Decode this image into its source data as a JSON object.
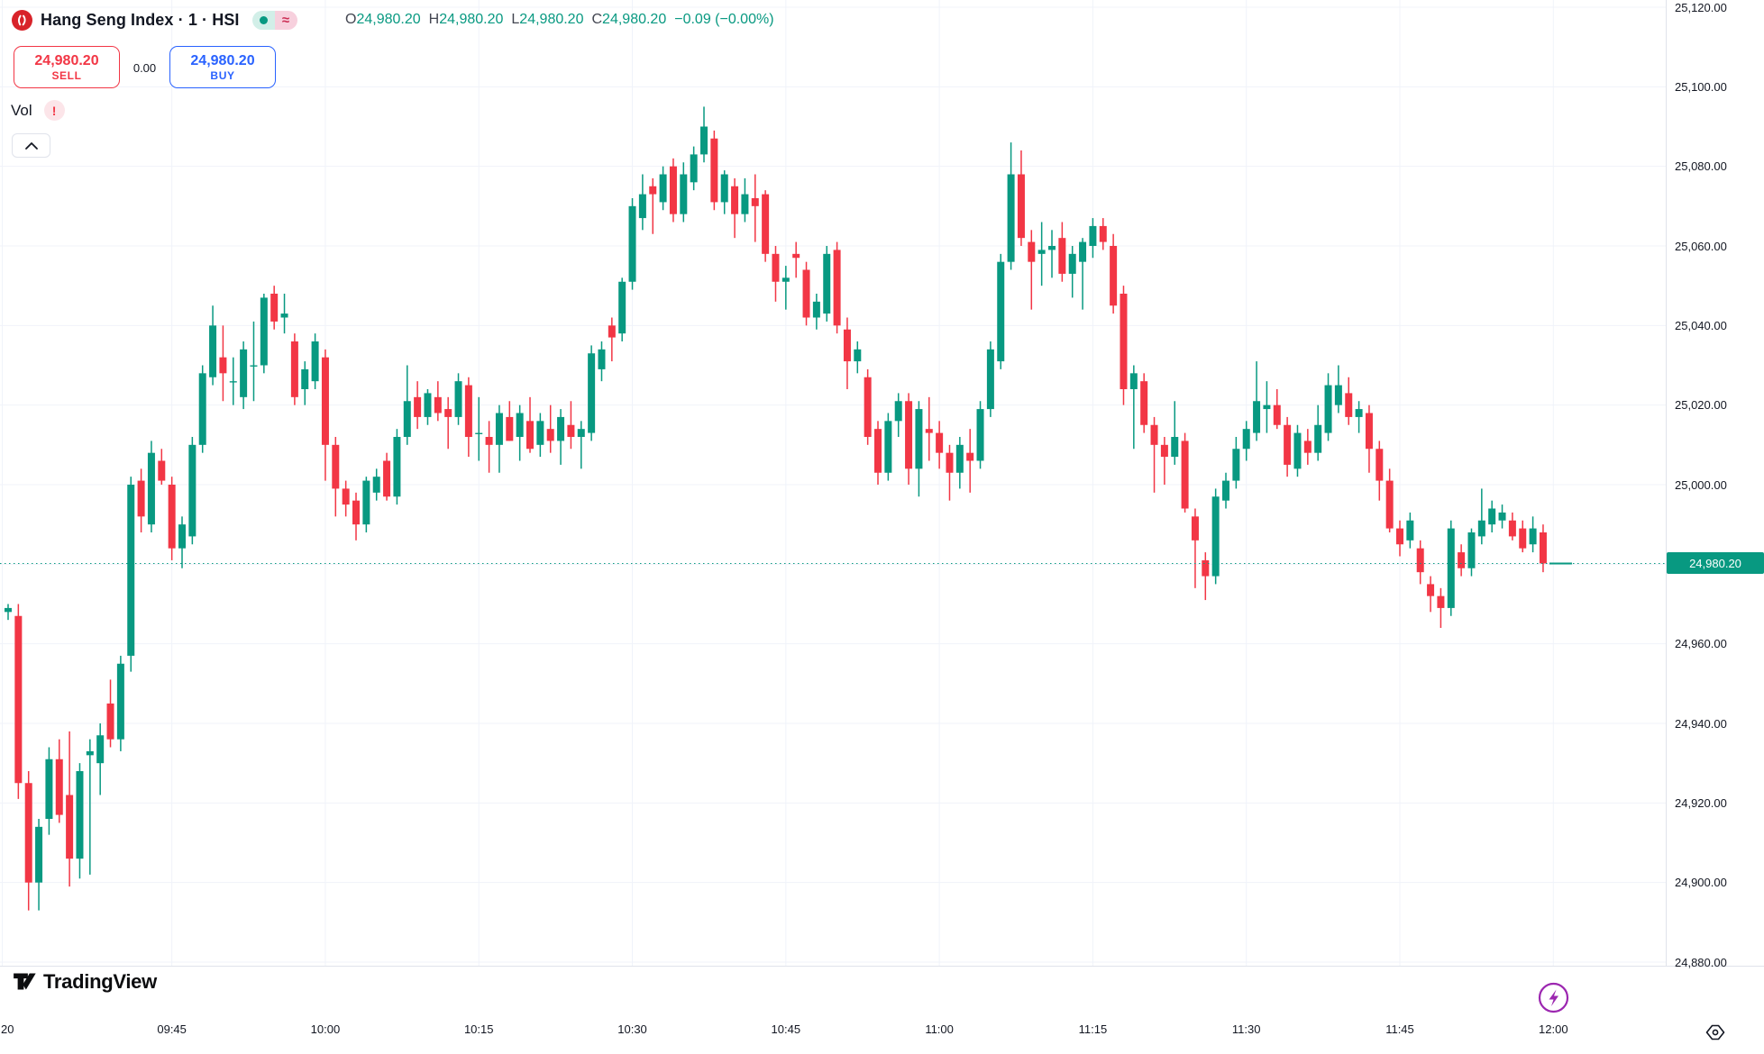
{
  "header": {
    "symbol_title": "Hang Seng Index · 1 · HSI",
    "logo_name": "hang-seng-logo",
    "status": {
      "market_open_dot": "",
      "delayed_glyph": "≈"
    },
    "ohlc": {
      "o_label": "O",
      "o": "24,980.20",
      "h_label": "H",
      "h": "24,980.20",
      "l_label": "L",
      "l": "24,980.20",
      "c_label": "C",
      "c": "24,980.20",
      "change": "−0.09 (−0.00%)"
    }
  },
  "trade_panel": {
    "sell_price": "24,980.20",
    "sell_label": "SELL",
    "spread": "0.00",
    "buy_price": "24,980.20",
    "buy_label": "BUY"
  },
  "legend": {
    "vol_label": "Vol",
    "warning_glyph": "!"
  },
  "price_axis": {
    "labels": [
      "25,120.00",
      "25,100.00",
      "25,080.00",
      "25,060.00",
      "25,040.00",
      "25,020.00",
      "25,000.00",
      "24,980.00",
      "24,960.00",
      "24,940.00",
      "24,920.00",
      "24,900.00",
      "24,880.00"
    ],
    "current_price_label": "24,980.20"
  },
  "time_axis": {
    "labels": [
      "09:45",
      "10:00",
      "10:15",
      "10:30",
      "10:45",
      "11:00",
      "11:15",
      "11:30",
      "11:45",
      "12:00"
    ],
    "partial_label": "20"
  },
  "footer": {
    "brand": "TradingView"
  },
  "colors": {
    "up": "#089981",
    "down": "#f23645",
    "grid": "#f0f3fa",
    "axis_border": "#e0e3eb",
    "sell": "#f23645",
    "buy": "#2962ff",
    "text": "#131722",
    "purple": "#9c27b0",
    "current_price_bg": "#089981"
  },
  "chart_data": {
    "type": "candlestick",
    "title": "Hang Seng Index 1-minute candles",
    "interval": "1m",
    "start_time": "09:29",
    "end_time": "11:59",
    "y_axis": {
      "min": 24880,
      "max": 25120,
      "step": 20
    },
    "legend_position": "top-left",
    "grid": true,
    "current_price": 24980.2,
    "candles_format": [
      "open",
      "high",
      "low",
      "close"
    ],
    "candles": [
      [
        24968,
        24970,
        24966,
        24969
      ],
      [
        24967,
        24970,
        24921,
        24925
      ],
      [
        24925,
        24928,
        24893,
        24900
      ],
      [
        24900,
        24916,
        24893,
        24914
      ],
      [
        24916,
        24934,
        24912,
        24931
      ],
      [
        24931,
        24936,
        24915,
        24917
      ],
      [
        24922,
        24938,
        24899,
        24906
      ],
      [
        24906,
        24930,
        24901,
        24928
      ],
      [
        24932,
        24936,
        24902,
        24933
      ],
      [
        24930,
        24940,
        24922,
        24937
      ],
      [
        24945,
        24951,
        24934,
        24936
      ],
      [
        24936,
        24957,
        24933,
        24955
      ],
      [
        24957,
        25002,
        24953,
        25000
      ],
      [
        25001,
        25004,
        24988,
        24992
      ],
      [
        24990,
        25011,
        24988,
        25008
      ],
      [
        25006,
        25009,
        25000,
        25001
      ],
      [
        25000,
        25002,
        24981,
        24984
      ],
      [
        24984,
        24992,
        24979,
        24990
      ],
      [
        24987,
        25012,
        24985,
        25010
      ],
      [
        25010,
        25030,
        25008,
        25028
      ],
      [
        25027,
        25045,
        25025,
        25040
      ],
      [
        25032,
        25040,
        25021,
        25028
      ],
      [
        25026,
        25032,
        25020,
        25026
      ],
      [
        25022,
        25036,
        25019,
        25034
      ],
      [
        25030,
        25041,
        25021,
        25030
      ],
      [
        25030,
        25048,
        25028,
        25047
      ],
      [
        25048,
        25050,
        25039,
        25041
      ],
      [
        25042,
        25048,
        25038,
        25043
      ],
      [
        25036,
        25038,
        25020,
        25022
      ],
      [
        25024,
        25031,
        25020,
        25029
      ],
      [
        25026,
        25038,
        25024,
        25036
      ],
      [
        25032,
        25034,
        25001,
        25010
      ],
      [
        25010,
        25012,
        24992,
        24999
      ],
      [
        24999,
        25001,
        24992,
        24995
      ],
      [
        24996,
        24998,
        24986,
        24990
      ],
      [
        24990,
        25002,
        24988,
        25001
      ],
      [
        24998,
        25004,
        24996,
        25002
      ],
      [
        25006,
        25008,
        24996,
        24997
      ],
      [
        24997,
        25014,
        24995,
        25012
      ],
      [
        25012,
        25030,
        25010,
        25021
      ],
      [
        25022,
        25026,
        25014,
        25017
      ],
      [
        25017,
        25024,
        25015,
        25023
      ],
      [
        25022,
        25026,
        25016,
        25018
      ],
      [
        25019,
        25022,
        25009,
        25017
      ],
      [
        25017,
        25028,
        25015,
        25026
      ],
      [
        25025,
        25027,
        25007,
        25012
      ],
      [
        25013,
        25022,
        25006,
        25013
      ],
      [
        25012,
        25016,
        25003,
        25010
      ],
      [
        25010,
        25020,
        25003,
        25018
      ],
      [
        25017,
        25021,
        25011,
        25011
      ],
      [
        25012,
        25020,
        25006,
        25018
      ],
      [
        25016,
        25022,
        25008,
        25009
      ],
      [
        25010,
        25018,
        25007,
        25016
      ],
      [
        25014,
        25020,
        25008,
        25011
      ],
      [
        25011,
        25019,
        25005,
        25017
      ],
      [
        25015,
        25021,
        25009,
        25012
      ],
      [
        25012,
        25016,
        25004,
        25014
      ],
      [
        25013,
        25035,
        25011,
        25033
      ],
      [
        25029,
        25036,
        25026,
        25034
      ],
      [
        25040,
        25042,
        25031,
        25037
      ],
      [
        25038,
        25052,
        25036,
        25051
      ],
      [
        25051,
        25072,
        25049,
        25070
      ],
      [
        25067,
        25078,
        25064,
        25073
      ],
      [
        25075,
        25077,
        25063,
        25073
      ],
      [
        25071,
        25080,
        25069,
        25078
      ],
      [
        25080,
        25082,
        25066,
        25068
      ],
      [
        25068,
        25081,
        25066,
        25078
      ],
      [
        25076,
        25085,
        25074,
        25083
      ],
      [
        25083,
        25095,
        25081,
        25090
      ],
      [
        25087,
        25089,
        25069,
        25071
      ],
      [
        25071,
        25079,
        25068,
        25078
      ],
      [
        25075,
        25077,
        25062,
        25068
      ],
      [
        25068,
        25077,
        25066,
        25073
      ],
      [
        25072,
        25078,
        25061,
        25070
      ],
      [
        25073,
        25074,
        25056,
        25058
      ],
      [
        25058,
        25060,
        25046,
        25051
      ],
      [
        25051,
        25055,
        25044,
        25052
      ],
      [
        25058,
        25061,
        25052,
        25057
      ],
      [
        25054,
        25056,
        25040,
        25042
      ],
      [
        25042,
        25048,
        25039,
        25046
      ],
      [
        25043,
        25060,
        25041,
        25058
      ],
      [
        25059,
        25061,
        25038,
        25040
      ],
      [
        25039,
        25042,
        25024,
        25031
      ],
      [
        25031,
        25036,
        25028,
        25034
      ],
      [
        25027,
        25029,
        25010,
        25012
      ],
      [
        25014,
        25016,
        25000,
        25003
      ],
      [
        25003,
        25018,
        25001,
        25016
      ],
      [
        25016,
        25023,
        25012,
        25021
      ],
      [
        25021,
        25023,
        25000,
        25004
      ],
      [
        25004,
        25021,
        24997,
        25019
      ],
      [
        25014,
        25022,
        25006,
        25013
      ],
      [
        25013,
        25016,
        25004,
        25008
      ],
      [
        25008,
        25010,
        24996,
        25003
      ],
      [
        25003,
        25012,
        24999,
        25010
      ],
      [
        25008,
        25014,
        24998,
        25006
      ],
      [
        25006,
        25021,
        25004,
        25019
      ],
      [
        25019,
        25036,
        25017,
        25034
      ],
      [
        25031,
        25058,
        25029,
        25056
      ],
      [
        25056,
        25086,
        25054,
        25078
      ],
      [
        25078,
        25084,
        25060,
        25062
      ],
      [
        25061,
        25064,
        25044,
        25056
      ],
      [
        25058,
        25066,
        25050,
        25059
      ],
      [
        25059,
        25064,
        25052,
        25060
      ],
      [
        25062,
        25066,
        25051,
        25053
      ],
      [
        25053,
        25060,
        25047,
        25058
      ],
      [
        25056,
        25062,
        25044,
        25061
      ],
      [
        25060,
        25067,
        25057,
        25065
      ],
      [
        25065,
        25067,
        25059,
        25061
      ],
      [
        25060,
        25063,
        25043,
        25045
      ],
      [
        25048,
        25050,
        25020,
        25024
      ],
      [
        25024,
        25030,
        25009,
        25028
      ],
      [
        25026,
        25028,
        25013,
        25015
      ],
      [
        25015,
        25017,
        24998,
        25010
      ],
      [
        25010,
        25012,
        25000,
        25007
      ],
      [
        25007,
        25021,
        25005,
        25012
      ],
      [
        25011,
        25013,
        24993,
        24994
      ],
      [
        24992,
        24994,
        24974,
        24986
      ],
      [
        24981,
        24983,
        24971,
        24977
      ],
      [
        24977,
        24999,
        24975,
        24997
      ],
      [
        24996,
        25003,
        24994,
        25001
      ],
      [
        25001,
        25012,
        24999,
        25009
      ],
      [
        25009,
        25016,
        25006,
        25014
      ],
      [
        25013,
        25031,
        25011,
        25021
      ],
      [
        25019,
        25026,
        25013,
        25020
      ],
      [
        25020,
        25024,
        25014,
        25015
      ],
      [
        25015,
        25017,
        25002,
        25005
      ],
      [
        25004,
        25015,
        25002,
        25013
      ],
      [
        25011,
        25014,
        25005,
        25008
      ],
      [
        25008,
        25020,
        25006,
        25015
      ],
      [
        25013,
        25028,
        25011,
        25025
      ],
      [
        25020,
        25030,
        25018,
        25025
      ],
      [
        25023,
        25027,
        25015,
        25017
      ],
      [
        25017,
        25021,
        25013,
        25019
      ],
      [
        25018,
        25020,
        25003,
        25009
      ],
      [
        25009,
        25011,
        24996,
        25001
      ],
      [
        25001,
        25004,
        24988,
        24989
      ],
      [
        24989,
        24991,
        24982,
        24985
      ],
      [
        24986,
        24993,
        24984,
        24991
      ],
      [
        24984,
        24986,
        24975,
        24978
      ],
      [
        24975,
        24977,
        24968,
        24972
      ],
      [
        24972,
        24974,
        24964,
        24969
      ],
      [
        24969,
        24991,
        24967,
        24989
      ],
      [
        24983,
        24985,
        24977,
        24979
      ],
      [
        24979,
        24989,
        24977,
        24988
      ],
      [
        24987,
        24999,
        24985,
        24991
      ],
      [
        24990,
        24996,
        24988,
        24994
      ],
      [
        24991,
        24995,
        24989,
        24993
      ],
      [
        24991,
        24993,
        24986,
        24987
      ],
      [
        24989,
        24991,
        24983,
        24984
      ],
      [
        24985,
        24992,
        24983,
        24989
      ],
      [
        24988,
        24990,
        24978,
        24980.2
      ]
    ]
  }
}
